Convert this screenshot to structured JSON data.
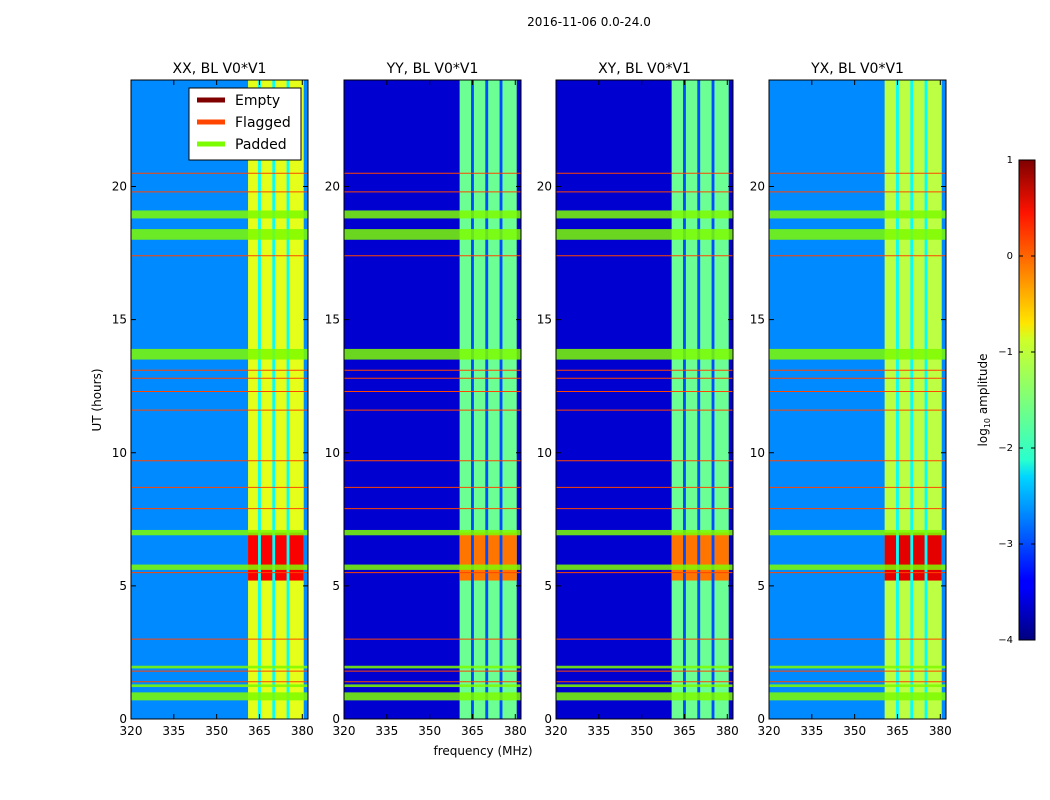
{
  "chart_data": {
    "type": "heatmap",
    "suptitle": "2016-11-06 0.0-24.0",
    "xlabel": "frequency (MHz)",
    "ylabel": "UT (hours)",
    "xlim": [
      320,
      382
    ],
    "ylim": [
      0,
      24
    ],
    "xticks": [
      320,
      335,
      350,
      365,
      380
    ],
    "yticks": [
      0,
      5,
      10,
      15,
      20
    ],
    "panels": [
      {
        "title": "XX, BL V0*V1",
        "band_low_MHz": 361,
        "band_high_MHz": 380.5,
        "background_log_amp": -2.7,
        "band_log_amp": -1.0,
        "burst_log_amp": 0.4
      },
      {
        "title": "YY, BL V0*V1",
        "band_low_MHz": 360.5,
        "band_high_MHz": 380.5,
        "background_log_amp": -3.6,
        "band_log_amp": -1.6,
        "burst_log_amp": -0.2
      },
      {
        "title": "XY, BL V0*V1",
        "band_low_MHz": 360.5,
        "band_high_MHz": 380.5,
        "background_log_amp": -3.6,
        "band_log_amp": -1.6,
        "burst_log_amp": -0.2
      },
      {
        "title": "YX, BL V0*V1",
        "band_low_MHz": 360.5,
        "band_high_MHz": 380.5,
        "background_log_amp": -2.7,
        "band_log_amp": -1.2,
        "burst_log_amp": 0.5
      }
    ],
    "band_gaps_MHz": [
      [
        364.5,
        365.5
      ],
      [
        369.5,
        370.5
      ],
      [
        374.5,
        375.5
      ]
    ],
    "burst_time_range_hours": [
      5.2,
      7.0
    ],
    "padded_time_ranges_hours": [
      [
        0.7,
        1.0
      ],
      [
        1.2,
        1.3
      ],
      [
        1.9,
        2.0
      ],
      [
        5.6,
        5.8
      ],
      [
        6.9,
        7.1
      ],
      [
        13.5,
        13.9
      ],
      [
        18.0,
        18.4
      ],
      [
        18.8,
        19.1
      ]
    ],
    "flagged_time_hours": [
      1.4,
      1.8,
      3.0,
      5.5,
      7.9,
      8.7,
      9.7,
      11.6,
      12.3,
      12.8,
      13.1,
      17.4,
      19.8,
      20.5
    ],
    "legend": {
      "position": "top-right of first panel",
      "entries": [
        {
          "label": "Empty",
          "color": "#800000"
        },
        {
          "label": "Flagged",
          "color": "#ff4500"
        },
        {
          "label": "Padded",
          "color": "#7cfc00"
        }
      ]
    },
    "colorbar": {
      "label": "log10 amplitude",
      "label_main": "log",
      "label_sub": "10",
      "label_rest": " amplitude",
      "min": -4,
      "max": 1,
      "ticks": [
        "1",
        "0",
        "−1",
        "−2",
        "−3",
        "−4"
      ],
      "tick_values": [
        1,
        0,
        -1,
        -2,
        -3,
        -4
      ],
      "colormap": "jet"
    }
  }
}
